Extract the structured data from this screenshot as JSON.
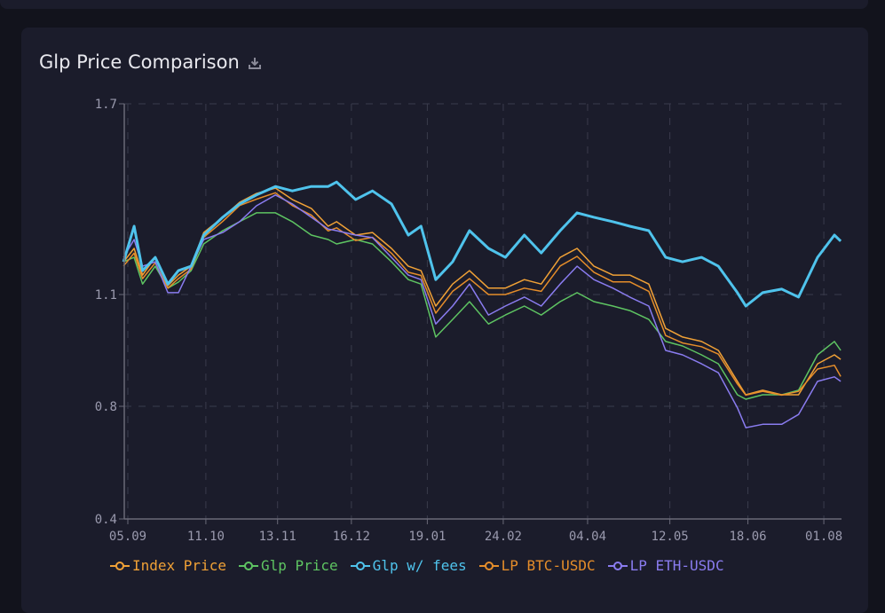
{
  "title": "Glp Price Comparison",
  "chart_data": {
    "type": "line",
    "title": "Glp Price Comparison",
    "xlabel": "",
    "ylabel": "",
    "x_unit": "days since 05.09",
    "xlim": [
      -2,
      338
    ],
    "ylim": [
      0.4,
      1.7
    ],
    "y_ticks": [
      {
        "value": 1.7,
        "label": "1.7"
      },
      {
        "value": 1.1,
        "label": "1.1"
      },
      {
        "value": 0.8,
        "label": "0.8"
      },
      {
        "value": 0.4,
        "label": "0.4"
      }
    ],
    "x_ticks": [
      {
        "value": 0,
        "label": "05.09"
      },
      {
        "value": 37,
        "label": "11.10"
      },
      {
        "value": 71,
        "label": "13.11"
      },
      {
        "value": 106,
        "label": "16.12"
      },
      {
        "value": 142,
        "label": "19.01"
      },
      {
        "value": 178,
        "label": "24.02"
      },
      {
        "value": 218,
        "label": "04.04"
      },
      {
        "value": 257,
        "label": "12.05"
      },
      {
        "value": 294,
        "label": "18.06"
      },
      {
        "value": 330,
        "label": "01.08"
      }
    ],
    "grid": true,
    "legend_position": "bottom",
    "x": [
      -2,
      3,
      7,
      13,
      19,
      24,
      30,
      36,
      45,
      53,
      61,
      70,
      78,
      87,
      95,
      99,
      108,
      116,
      125,
      133,
      139,
      146,
      154,
      162,
      171,
      179,
      188,
      196,
      205,
      213,
      221,
      230,
      238,
      247,
      255,
      263,
      272,
      280,
      289,
      293,
      301,
      310,
      318,
      327,
      335,
      338
    ],
    "series": [
      {
        "name": "Index Price",
        "color": "#f0a136",
        "values": [
          1.203,
          1.245,
          1.161,
          1.217,
          1.128,
          1.161,
          1.189,
          1.295,
          1.343,
          1.39,
          1.418,
          1.435,
          1.399,
          1.371,
          1.315,
          1.329,
          1.287,
          1.295,
          1.245,
          1.189,
          1.175,
          1.069,
          1.133,
          1.175,
          1.12,
          1.12,
          1.147,
          1.133,
          1.217,
          1.245,
          1.189,
          1.161,
          1.161,
          1.133,
          1.009,
          0.986,
          0.974,
          0.95,
          0.867,
          0.831,
          0.843,
          0.831,
          0.831,
          0.914,
          0.938,
          0.926
        ]
      },
      {
        "name": "Glp Price",
        "color": "#5ec462",
        "values": [
          1.203,
          1.217,
          1.133,
          1.189,
          1.12,
          1.139,
          1.175,
          1.259,
          1.301,
          1.329,
          1.357,
          1.357,
          1.329,
          1.287,
          1.273,
          1.259,
          1.273,
          1.259,
          1.203,
          1.147,
          1.133,
          0.986,
          1.033,
          1.081,
          1.021,
          1.045,
          1.069,
          1.045,
          1.081,
          1.106,
          1.081,
          1.069,
          1.057,
          1.033,
          0.974,
          0.962,
          0.938,
          0.914,
          0.831,
          0.819,
          0.831,
          0.831,
          0.843,
          0.938,
          0.974,
          0.95
        ]
      },
      {
        "name": "Glp w/ fees",
        "color": "#4fc3ec",
        "values": [
          1.203,
          1.315,
          1.175,
          1.217,
          1.133,
          1.175,
          1.189,
          1.287,
          1.343,
          1.385,
          1.413,
          1.44,
          1.426,
          1.44,
          1.44,
          1.454,
          1.399,
          1.426,
          1.385,
          1.287,
          1.315,
          1.147,
          1.203,
          1.301,
          1.245,
          1.217,
          1.287,
          1.231,
          1.301,
          1.357,
          1.343,
          1.329,
          1.315,
          1.301,
          1.217,
          1.203,
          1.217,
          1.189,
          1.106,
          1.069,
          1.106,
          1.117,
          1.093,
          1.217,
          1.287,
          1.268
        ]
      },
      {
        "name": "LP BTC-USDC",
        "color": "#e58d2a",
        "values": [
          1.19,
          1.23,
          1.15,
          1.2,
          1.12,
          1.15,
          1.18,
          1.28,
          1.33,
          1.38,
          1.4,
          1.42,
          1.38,
          1.35,
          1.3,
          1.31,
          1.27,
          1.28,
          1.23,
          1.17,
          1.16,
          1.05,
          1.11,
          1.15,
          1.1,
          1.1,
          1.12,
          1.11,
          1.19,
          1.22,
          1.17,
          1.14,
          1.14,
          1.11,
          0.99,
          0.97,
          0.96,
          0.94,
          0.86,
          0.83,
          0.84,
          0.83,
          0.84,
          0.9,
          0.91,
          0.88
        ]
      },
      {
        "name": "LP ETH-USDC",
        "color": "#8a7cf0",
        "values": [
          1.217,
          1.273,
          1.189,
          1.203,
          1.106,
          1.106,
          1.189,
          1.273,
          1.295,
          1.329,
          1.379,
          1.413,
          1.385,
          1.343,
          1.306,
          1.301,
          1.287,
          1.279,
          1.217,
          1.161,
          1.147,
          1.021,
          1.069,
          1.133,
          1.045,
          1.069,
          1.093,
          1.069,
          1.133,
          1.189,
          1.147,
          1.12,
          1.093,
          1.069,
          0.95,
          0.938,
          0.914,
          0.89,
          0.795,
          0.724,
          0.736,
          0.736,
          0.771,
          0.867,
          0.879,
          0.867
        ]
      }
    ]
  }
}
